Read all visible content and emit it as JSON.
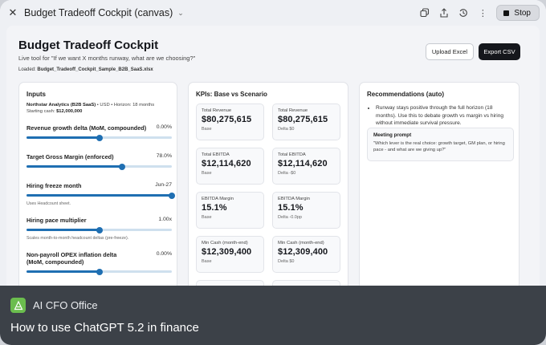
{
  "window": {
    "title": "Budget Tradeoff Cockpit (canvas)",
    "stop_label": "Stop"
  },
  "header": {
    "title": "Budget Tradeoff Cockpit",
    "subtitle": "Live tool for \"If we want X months runway, what are we choosing?\"",
    "loaded_prefix": "Loaded:",
    "loaded_file": "Budget_Tradeoff_Cockpit_Sample_B2B_SaaS.xlsx",
    "upload_label": "Upload Excel",
    "export_label": "Export CSV"
  },
  "inputs": {
    "title": "Inputs",
    "company": "Northstar Analytics (B2B SaaS)",
    "company_meta": "• USD • Horizon: 18 months",
    "cash_prefix": "Starting cash:",
    "cash_value": "$12,000,000",
    "controls": [
      {
        "label": "Revenue growth delta (MoM, compounded)",
        "value": "0.00%",
        "level": 0.5,
        "hint": ""
      },
      {
        "label": "Target Gross Margin (enforced)",
        "value": "78.0%",
        "level": 0.66,
        "hint": ""
      },
      {
        "label": "Hiring freeze month",
        "value": "Jun-27",
        "level": 1.0,
        "hint": "Uses Headcount sheet."
      },
      {
        "label": "Hiring pace multiplier",
        "value": "1.00x",
        "level": 0.5,
        "hint": "Scales month-to-month headcount deltas (pre-freeze)."
      },
      {
        "label": "Non-payroll OPEX inflation delta (MoM, compounded)",
        "value": "0.00%",
        "level": 0.5,
        "hint": ""
      }
    ]
  },
  "kpis": {
    "title": "KPIs: Base vs Scenario",
    "cards": [
      {
        "label": "Total Revenue",
        "value": "$80,275,615",
        "sub": "Base"
      },
      {
        "label": "Total Revenue",
        "value": "$80,275,615",
        "sub": "Delta $0"
      },
      {
        "label": "Total EBITDA",
        "value": "$12,114,620",
        "sub": "Base"
      },
      {
        "label": "Total EBITDA",
        "value": "$12,114,620",
        "sub": "Delta -$0"
      },
      {
        "label": "EBITDA Margin",
        "value": "15.1%",
        "sub": "Base"
      },
      {
        "label": "EBITDA Margin",
        "value": "15.1%",
        "sub": "Delta -0.0pp"
      },
      {
        "label": "Min Cash (month-end)",
        "value": "$12,309,400",
        "sub": "Base"
      },
      {
        "label": "Min Cash (month-end)",
        "value": "$12,309,400",
        "sub": "Delta $0"
      }
    ]
  },
  "recommendations": {
    "title": "Recommendations (auto)",
    "bullet": "Runway stays positive through the full horizon (18 months). Use this to debate growth vs margin vs hiring without immediate survival pressure.",
    "prompt_heading": "Meeting prompt",
    "prompt_text": "\"Which lever is the real choice: growth target, GM plan, or hiring pace - and what are we giving up?\""
  },
  "overlay": {
    "brand": "AI CFO Office",
    "title": "How to use ChatGPT 5.2 in finance"
  },
  "colors": {
    "accent": "#1f6fb2",
    "brand_green": "#6bbd4e",
    "overlay_bg": "#3c4148"
  }
}
